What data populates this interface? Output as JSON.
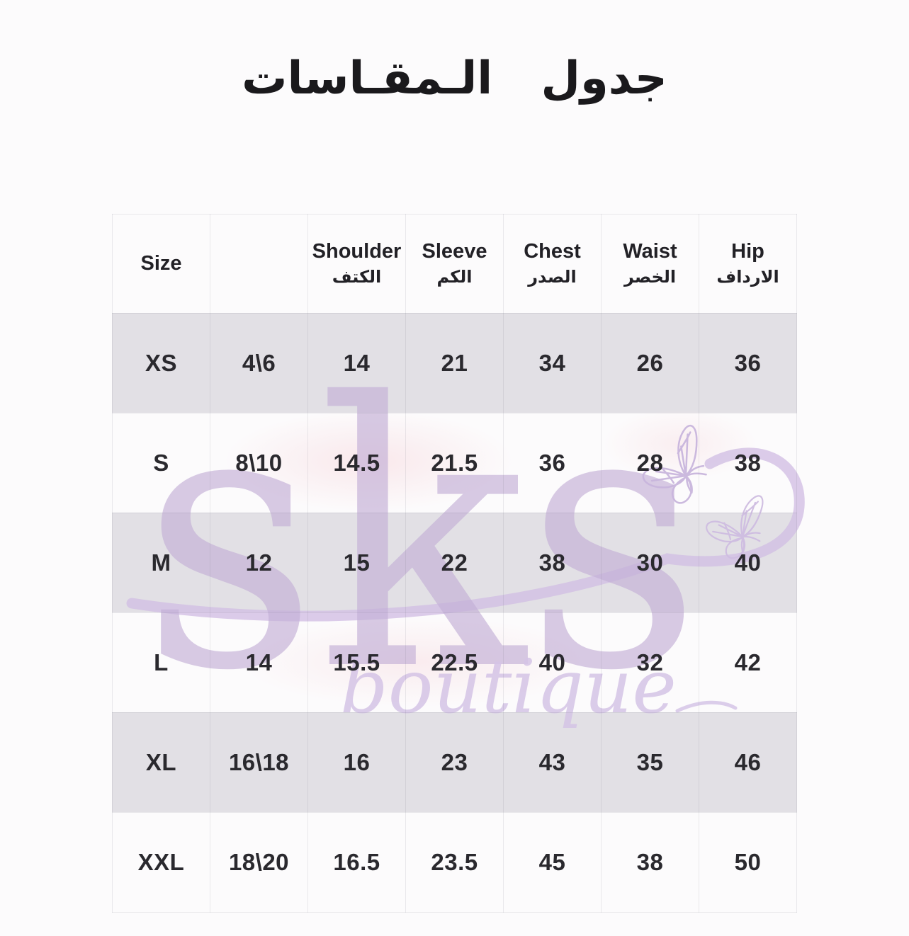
{
  "title": "جدول الـمقـاسات",
  "watermark": {
    "logo": "sks",
    "word": "boutique"
  },
  "table": {
    "columns": [
      {
        "en": "Size",
        "ar": ""
      },
      {
        "en": "",
        "ar": ""
      },
      {
        "en": "Shoulder",
        "ar": "الكتف"
      },
      {
        "en": "Sleeve",
        "ar": "الكم"
      },
      {
        "en": "Chest",
        "ar": "الصدر"
      },
      {
        "en": "Waist",
        "ar": "الخصر"
      },
      {
        "en": "Hip",
        "ar": "الارداف"
      }
    ],
    "rows": [
      {
        "size": "XS",
        "values": [
          "4\\6",
          "14",
          "21",
          "34",
          "26",
          "36"
        ],
        "shaded": true
      },
      {
        "size": "S",
        "values": [
          "8\\10",
          "14.5",
          "21.5",
          "36",
          "28",
          "38"
        ],
        "shaded": false
      },
      {
        "size": "M",
        "values": [
          "12",
          "15",
          "22",
          "38",
          "30",
          "40"
        ],
        "shaded": true
      },
      {
        "size": "L",
        "values": [
          "14",
          "15.5",
          "22.5",
          "40",
          "32",
          "42"
        ],
        "shaded": false
      },
      {
        "size": "XL",
        "values": [
          "16\\18",
          "16",
          "23",
          "43",
          "35",
          "46"
        ],
        "shaded": true
      },
      {
        "size": "XXL",
        "values": [
          "18\\20",
          "16.5",
          "23.5",
          "45",
          "38",
          "50"
        ],
        "shaded": false
      }
    ]
  },
  "colors": {
    "row_shade": "#e2e0e5",
    "watermark_purple": "#c4b0d7",
    "watermark_light": "#d5c4e6",
    "text": "#2a292e"
  }
}
